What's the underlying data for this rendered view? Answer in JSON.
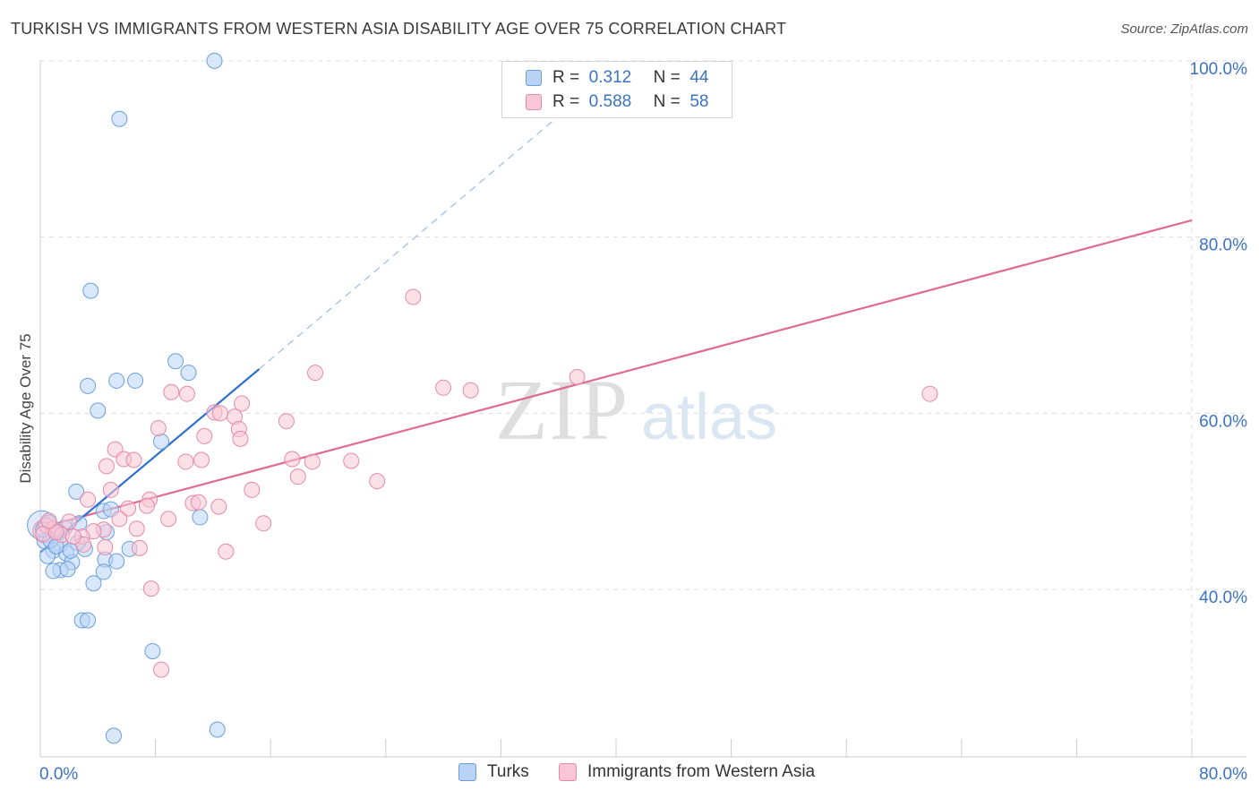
{
  "title": "TURKISH VS IMMIGRANTS FROM WESTERN ASIA DISABILITY AGE OVER 75 CORRELATION CHART",
  "source": "Source: ZipAtlas.com",
  "watermark": {
    "zip": "ZIP",
    "atlas": "atlas"
  },
  "legend": {
    "rows": [
      {
        "r_label": "R =",
        "r_value": "0.312",
        "n_label": "N =",
        "n_value": "44"
      },
      {
        "r_label": "R =",
        "r_value": "0.588",
        "n_label": "N =",
        "n_value": "58"
      }
    ]
  },
  "colors": {
    "turks_fill": "#b9d3f5",
    "turks_stroke": "#6a9fdc",
    "turks_line": "#2f6fcf",
    "wa_fill": "#f8c6d6",
    "wa_stroke": "#e58aa8",
    "wa_line": "#e06a92",
    "axis_text": "#3b73c4",
    "grid": "#dddddd"
  },
  "chart_data": {
    "type": "scatter",
    "title": "TURKISH VS IMMIGRANTS FROM WESTERN ASIA DISABILITY AGE OVER 75 CORRELATION CHART",
    "xlabel": "",
    "ylabel": "Disability Age Over 75",
    "xlim": [
      0,
      80
    ],
    "ylim": [
      21,
      101
    ],
    "x_tick_labels": [
      "0.0%",
      "80.0%"
    ],
    "y_ticks": [
      40,
      60,
      80,
      100
    ],
    "y_tick_labels": [
      "40.0%",
      "60.0%",
      "80.0%",
      "100.0%"
    ],
    "series": [
      {
        "name": "Turks",
        "points": [
          [
            12.1,
            100.0
          ],
          [
            5.5,
            93.4
          ],
          [
            3.5,
            73.9
          ],
          [
            9.4,
            65.9
          ],
          [
            10.3,
            64.6
          ],
          [
            3.3,
            63.1
          ],
          [
            5.3,
            63.7
          ],
          [
            6.6,
            63.7
          ],
          [
            4.0,
            60.3
          ],
          [
            8.4,
            56.8
          ],
          [
            2.5,
            51.1
          ],
          [
            11.1,
            48.2
          ],
          [
            4.4,
            48.9
          ],
          [
            4.9,
            49.1
          ],
          [
            2.7,
            47.5
          ],
          [
            0.6,
            47.6
          ],
          [
            1.3,
            46.5
          ],
          [
            4.6,
            46.5
          ],
          [
            0.3,
            45.5
          ],
          [
            1.4,
            45.1
          ],
          [
            0.9,
            44.4
          ],
          [
            3.1,
            44.6
          ],
          [
            6.2,
            44.6
          ],
          [
            1.8,
            44.1
          ],
          [
            0.5,
            43.8
          ],
          [
            4.5,
            43.4
          ],
          [
            5.3,
            43.2
          ],
          [
            2.2,
            43.1
          ],
          [
            1.4,
            42.2
          ],
          [
            0.9,
            42.1
          ],
          [
            4.4,
            42.0
          ],
          [
            1.9,
            42.3
          ],
          [
            3.7,
            40.7
          ],
          [
            2.9,
            36.5
          ],
          [
            3.3,
            36.5
          ],
          [
            7.8,
            33.0
          ],
          [
            12.3,
            24.1
          ],
          [
            5.1,
            23.4
          ],
          [
            0.7,
            45.6
          ],
          [
            1.1,
            44.9
          ],
          [
            2.6,
            45.3
          ],
          [
            0.2,
            46.8
          ],
          [
            1.7,
            47.0
          ],
          [
            2.1,
            44.4
          ]
        ]
      },
      {
        "name": "Immigrants from Western Asia",
        "points": [
          [
            25.9,
            73.2
          ],
          [
            19.1,
            64.6
          ],
          [
            37.3,
            64.1
          ],
          [
            29.9,
            62.6
          ],
          [
            28.0,
            62.9
          ],
          [
            61.8,
            62.2
          ],
          [
            9.1,
            62.4
          ],
          [
            10.2,
            62.2
          ],
          [
            14.0,
            61.1
          ],
          [
            12.1,
            60.1
          ],
          [
            12.5,
            60.0
          ],
          [
            13.5,
            59.6
          ],
          [
            17.1,
            59.1
          ],
          [
            8.2,
            58.3
          ],
          [
            13.8,
            58.2
          ],
          [
            11.4,
            57.4
          ],
          [
            13.9,
            57.1
          ],
          [
            5.2,
            55.9
          ],
          [
            5.8,
            54.8
          ],
          [
            6.5,
            54.7
          ],
          [
            10.1,
            54.5
          ],
          [
            11.2,
            54.7
          ],
          [
            17.5,
            54.8
          ],
          [
            18.9,
            54.5
          ],
          [
            21.6,
            54.6
          ],
          [
            4.6,
            54.0
          ],
          [
            17.9,
            52.8
          ],
          [
            23.4,
            52.3
          ],
          [
            14.7,
            51.3
          ],
          [
            4.9,
            51.3
          ],
          [
            3.3,
            50.2
          ],
          [
            7.6,
            50.2
          ],
          [
            10.6,
            49.8
          ],
          [
            11.0,
            49.9
          ],
          [
            7.4,
            49.5
          ],
          [
            12.4,
            49.4
          ],
          [
            6.1,
            49.2
          ],
          [
            5.5,
            48.0
          ],
          [
            8.9,
            48.0
          ],
          [
            15.5,
            47.5
          ],
          [
            2.0,
            47.7
          ],
          [
            0.4,
            47.3
          ],
          [
            0.9,
            46.9
          ],
          [
            6.7,
            46.9
          ],
          [
            4.4,
            46.8
          ],
          [
            3.7,
            46.6
          ],
          [
            0.2,
            46.3
          ],
          [
            1.5,
            46.2
          ],
          [
            2.9,
            46.0
          ],
          [
            3.0,
            45.1
          ],
          [
            4.5,
            44.8
          ],
          [
            6.9,
            44.7
          ],
          [
            12.9,
            44.3
          ],
          [
            7.7,
            40.1
          ],
          [
            8.4,
            30.9
          ],
          [
            1.1,
            46.5
          ],
          [
            2.3,
            46.0
          ],
          [
            0.6,
            47.8
          ]
        ]
      }
    ],
    "trend_lines": [
      {
        "series": "Turks",
        "solid": [
          [
            0,
            44.2
          ],
          [
            15.2,
            65.0
          ]
        ],
        "dashed": [
          [
            15.2,
            65.0
          ],
          [
            36.5,
            94.4
          ]
        ]
      },
      {
        "series": "Immigrants from Western Asia",
        "solid": [
          [
            0,
            47.0
          ],
          [
            80,
            81.9
          ]
        ]
      }
    ],
    "legend": [
      "Turks",
      "Immigrants from Western Asia"
    ],
    "grid": true
  }
}
